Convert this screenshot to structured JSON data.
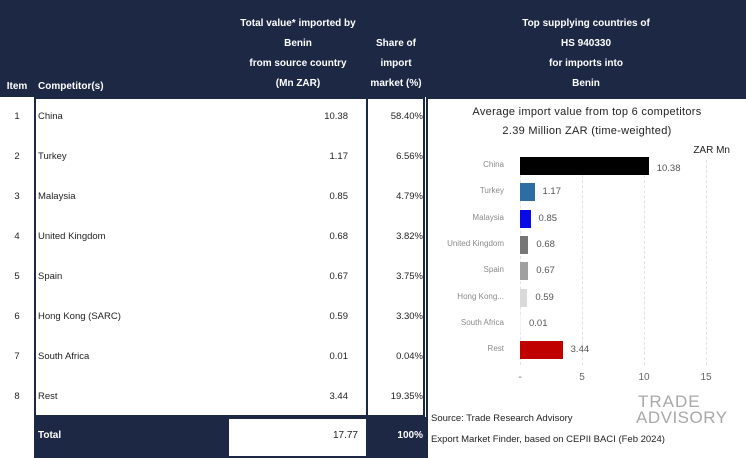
{
  "headers": {
    "item": "Item",
    "competitor": "Competitor(s)",
    "value": [
      "Total value* imported by",
      "Benin",
      "from source country",
      "(Mn ZAR)"
    ],
    "share": [
      "Share of",
      "import",
      "market (%)"
    ],
    "chart": [
      "Top supplying countries of",
      "HS 940330",
      "for imports into",
      "Benin"
    ]
  },
  "rows": [
    {
      "item": "1",
      "name": "China",
      "value": "10.38",
      "share": "58.40%"
    },
    {
      "item": "2",
      "name": "Turkey",
      "value": "1.17",
      "share": "6.56%"
    },
    {
      "item": "3",
      "name": "Malaysia",
      "value": "0.85",
      "share": "4.79%"
    },
    {
      "item": "4",
      "name": "United Kingdom",
      "value": "0.68",
      "share": "3.82%"
    },
    {
      "item": "5",
      "name": "Spain",
      "value": "0.67",
      "share": "3.75%"
    },
    {
      "item": "6",
      "name": "Hong Kong (SARC)",
      "value": "0.59",
      "share": "3.30%"
    },
    {
      "item": "7",
      "name": "South Africa",
      "value": "0.01",
      "share": "0.04%"
    },
    {
      "item": "8",
      "name": "Rest",
      "value": "3.44",
      "share": "19.35%"
    }
  ],
  "total": {
    "label": "Total",
    "value": "17.77",
    "share": "100%"
  },
  "chart_data": {
    "type": "bar",
    "orientation": "horizontal",
    "title": "Average import value from top 6 competitors",
    "subtitle": "2.39 Million ZAR (time-weighted)",
    "unit_label": "ZAR Mn",
    "categories": [
      "China",
      "Turkey",
      "Malaysia",
      "United Kingdom",
      "Spain",
      "Hong Kong...",
      "South Africa",
      "Rest"
    ],
    "values": [
      10.38,
      1.17,
      0.85,
      0.68,
      0.67,
      0.59,
      0.01,
      3.44
    ],
    "value_labels": [
      "10.38",
      "1.17",
      "0.85",
      "0.68",
      "0.67",
      "0.59",
      "0.01",
      "3.44"
    ],
    "colors": [
      "#000000",
      "#2e6da4",
      "#0a0ae6",
      "#777777",
      "#a0a0a0",
      "#d9d9d9",
      "#f2f2f2",
      "#c00000"
    ],
    "xlim": [
      0,
      15
    ],
    "xticks": [
      "-",
      "5",
      "10",
      "15"
    ],
    "xtick_values": [
      0,
      5,
      10,
      15
    ],
    "grid": true
  },
  "source": {
    "line1": "Source: Trade Research Advisory",
    "line2": "Export Market Finder, based on CEPII BACI (Feb 2024)"
  },
  "logo": {
    "line1": "TRADE",
    "line2": "ADVISORY"
  }
}
